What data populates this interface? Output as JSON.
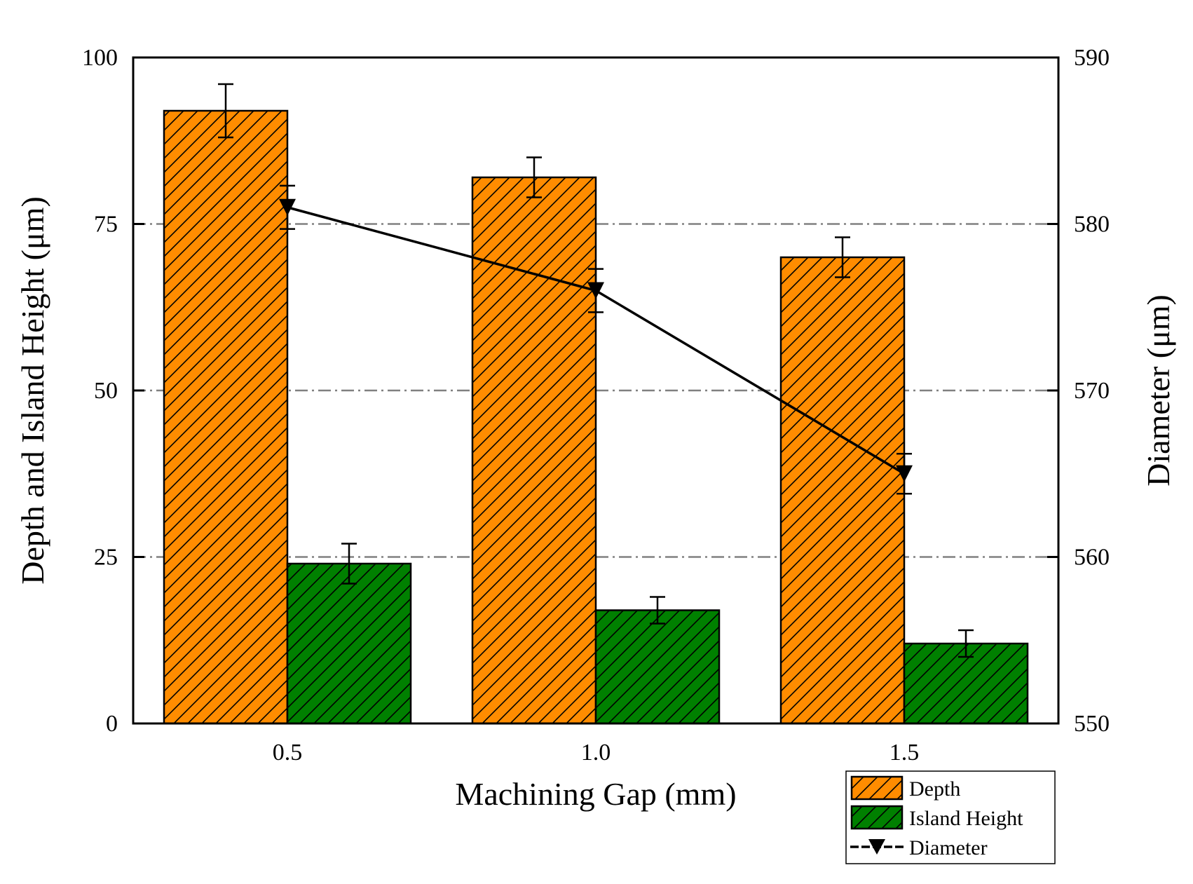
{
  "chart_data": {
    "type": "bar",
    "title": "",
    "xlabel": "Machining Gap (mm)",
    "ylabel": "Depth and Island Height (μm)",
    "y2label": "Diameter (μm)",
    "categories": [
      "0.5",
      "1.0",
      "1.5"
    ],
    "ylim": [
      0,
      100
    ],
    "y2lim": [
      550,
      590
    ],
    "yticks": [
      "0",
      "25",
      "50",
      "75",
      "100"
    ],
    "y2ticks": [
      "550",
      "560",
      "570",
      "580",
      "590"
    ],
    "grid": "horizontal dash-dot",
    "legend_position": "bottom-right, below plot",
    "series": [
      {
        "name": "Depth",
        "kind": "bar",
        "axis": "left",
        "color": "#FF8C00",
        "hatch": true,
        "values": [
          92,
          82,
          70
        ],
        "errors": [
          4,
          3,
          3
        ]
      },
      {
        "name": "Island Height",
        "kind": "bar",
        "axis": "left",
        "color": "#008000",
        "hatch": true,
        "values": [
          24,
          17,
          12
        ],
        "errors": [
          3,
          2,
          2
        ]
      },
      {
        "name": "Diameter",
        "kind": "line",
        "axis": "right",
        "color": "#000000",
        "marker": "down-triangle",
        "values": [
          581,
          576,
          565
        ],
        "errors": [
          1.3,
          1.3,
          1.2
        ]
      }
    ]
  }
}
